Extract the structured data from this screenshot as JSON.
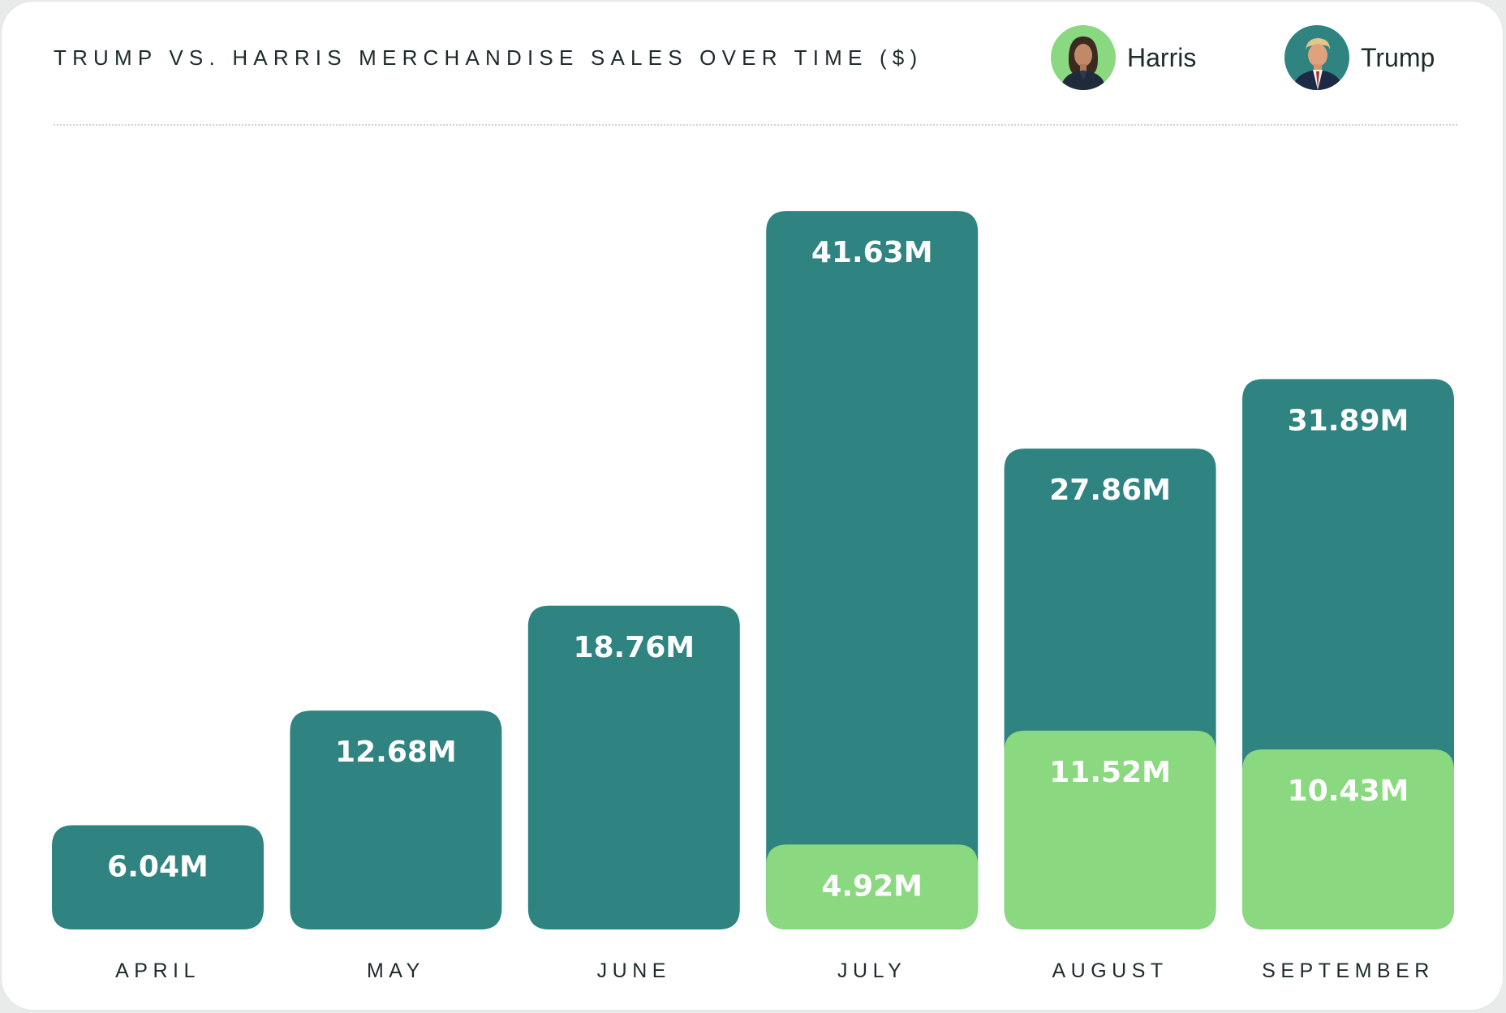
{
  "title": "Trump vs. Harris Merchandise Sales Over Time ($)",
  "legend": [
    {
      "name": "Harris",
      "color": "#8ad87f",
      "icon": "harris-portrait-icon"
    },
    {
      "name": "Trump",
      "color": "#2f8381",
      "icon": "trump-portrait-icon"
    }
  ],
  "colors": {
    "trump": "#2f8381",
    "harris": "#8ad87f",
    "text": "#1d2b2a",
    "background": "#ffffff"
  },
  "chart_data": {
    "type": "bar",
    "title": "Trump vs. Harris Merchandise Sales Over Time ($)",
    "categories": [
      "April",
      "May",
      "June",
      "July",
      "August",
      "September"
    ],
    "ylim": [
      0,
      45
    ],
    "grid": false,
    "legend_position": "top-right",
    "series": [
      {
        "name": "Trump",
        "color": "#2f8381",
        "values": [
          6.04,
          12.68,
          18.76,
          41.63,
          27.86,
          31.89
        ],
        "labels": [
          "6.04M",
          "12.68M",
          "18.76M",
          "41.63M",
          "27.86M",
          "31.89M"
        ]
      },
      {
        "name": "Harris",
        "color": "#8ad87f",
        "values": [
          null,
          null,
          null,
          4.92,
          11.52,
          10.43
        ],
        "labels": [
          null,
          null,
          null,
          "4.92M",
          "11.52M",
          "10.43M"
        ]
      }
    ]
  }
}
